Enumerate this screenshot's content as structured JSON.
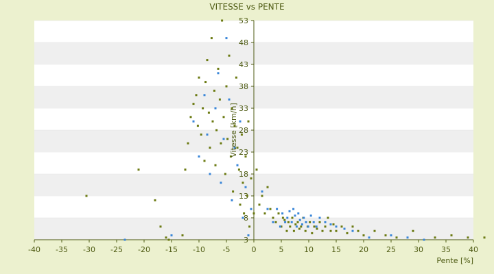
{
  "chart_data": {
    "type": "scatter",
    "title": "VITESSE vs PENTE",
    "xlabel": "Pente [%]",
    "ylabel": "Vitesse [km/h]",
    "xlim": [
      -40,
      40
    ],
    "ylim": [
      3,
      53
    ],
    "x_ticks": [
      -40,
      -35,
      -30,
      -25,
      -20,
      -15,
      -10,
      -5,
      0,
      5,
      10,
      15,
      20,
      25,
      30,
      35,
      40
    ],
    "y_ticks": [
      3,
      8,
      13,
      18,
      23,
      28,
      33,
      38,
      43,
      48,
      53
    ],
    "grid": "horizontal bands",
    "legend": "none",
    "colors": {
      "series_a": "#6b7a12",
      "series_b": "#3a86d8",
      "band": "#efefef",
      "axis": "#4d5a12"
    },
    "series": [
      {
        "marker_color": "#6b7a12",
        "points": [
          [
            -30.5,
            13
          ],
          [
            -21,
            19
          ],
          [
            -18,
            12
          ],
          [
            -17,
            6
          ],
          [
            -16,
            3.5
          ],
          [
            -15.5,
            3
          ],
          [
            -13,
            4
          ],
          [
            -12.5,
            19
          ],
          [
            -12,
            25
          ],
          [
            -11.5,
            31
          ],
          [
            -11,
            34
          ],
          [
            -10.5,
            36
          ],
          [
            -10.2,
            29
          ],
          [
            -10,
            40
          ],
          [
            -9.6,
            27
          ],
          [
            -9.3,
            33
          ],
          [
            -9,
            21
          ],
          [
            -8.8,
            39
          ],
          [
            -8.5,
            44
          ],
          [
            -8.2,
            32
          ],
          [
            -8,
            24
          ],
          [
            -7.7,
            49
          ],
          [
            -7.5,
            30
          ],
          [
            -7.2,
            37
          ],
          [
            -7,
            20
          ],
          [
            -6.8,
            28
          ],
          [
            -6.5,
            42
          ],
          [
            -6.2,
            35
          ],
          [
            -6,
            25
          ],
          [
            -5.8,
            53
          ],
          [
            -5.5,
            31
          ],
          [
            -5.2,
            18
          ],
          [
            -5,
            38
          ],
          [
            -4.8,
            26
          ],
          [
            -4.5,
            45
          ],
          [
            -4.2,
            22
          ],
          [
            -4,
            33
          ],
          [
            -3.8,
            14
          ],
          [
            -3.5,
            29
          ],
          [
            -3.2,
            40
          ],
          [
            -3,
            24
          ],
          [
            -2.7,
            19
          ],
          [
            -2.5,
            11
          ],
          [
            -2.2,
            27
          ],
          [
            -2,
            16
          ],
          [
            -1.8,
            9
          ],
          [
            -1.5,
            22
          ],
          [
            -1.2,
            13
          ],
          [
            -1,
            30
          ],
          [
            -0.8,
            6
          ],
          [
            -0.5,
            17
          ],
          [
            0,
            9
          ],
          [
            0.5,
            19
          ],
          [
            1,
            11
          ],
          [
            1.5,
            13
          ],
          [
            2,
            9
          ],
          [
            2.5,
            15
          ],
          [
            3,
            10
          ],
          [
            3.5,
            8
          ],
          [
            4,
            7
          ],
          [
            4.5,
            9
          ],
          [
            5,
            6
          ],
          [
            5.3,
            8
          ],
          [
            5.6,
            7.5
          ],
          [
            6,
            5
          ],
          [
            6.3,
            7
          ],
          [
            6.6,
            6
          ],
          [
            7,
            8
          ],
          [
            7.3,
            5
          ],
          [
            7.6,
            6.5
          ],
          [
            8,
            7
          ],
          [
            8.3,
            5.5
          ],
          [
            8.6,
            6
          ],
          [
            9,
            8
          ],
          [
            9.4,
            5
          ],
          [
            9.8,
            6
          ],
          [
            10.2,
            7
          ],
          [
            10.6,
            4.5
          ],
          [
            11,
            6
          ],
          [
            11.5,
            5.5
          ],
          [
            12,
            7
          ],
          [
            12.5,
            5
          ],
          [
            13,
            6
          ],
          [
            13.5,
            8
          ],
          [
            14,
            5
          ],
          [
            14.5,
            6.5
          ],
          [
            15,
            5
          ],
          [
            16,
            6
          ],
          [
            17,
            4.5
          ],
          [
            18,
            6
          ],
          [
            19,
            5
          ],
          [
            20,
            4
          ],
          [
            22,
            5
          ],
          [
            24,
            4
          ],
          [
            26,
            3.5
          ],
          [
            29,
            5
          ],
          [
            33,
            3.5
          ],
          [
            36,
            4
          ],
          [
            39,
            3.5
          ],
          [
            42,
            3.5
          ]
        ]
      },
      {
        "marker_color": "#3a86d8",
        "points": [
          [
            -23.5,
            3
          ],
          [
            -15,
            4
          ],
          [
            -11,
            30
          ],
          [
            -10,
            22
          ],
          [
            -9,
            36
          ],
          [
            -8.5,
            27
          ],
          [
            -8,
            18
          ],
          [
            -7,
            33
          ],
          [
            -6.5,
            41
          ],
          [
            -6,
            16
          ],
          [
            -5.5,
            26
          ],
          [
            -5,
            49
          ],
          [
            -4.5,
            35
          ],
          [
            -4,
            12
          ],
          [
            -3.5,
            24
          ],
          [
            -3,
            20
          ],
          [
            -2.5,
            30
          ],
          [
            -2,
            8
          ],
          [
            -1.5,
            15
          ],
          [
            -1,
            4
          ],
          [
            -0.5,
            10
          ],
          [
            1.5,
            14
          ],
          [
            2.5,
            10
          ],
          [
            3.5,
            7
          ],
          [
            4.2,
            10
          ],
          [
            4.8,
            6
          ],
          [
            5.2,
            9
          ],
          [
            5.7,
            7
          ],
          [
            6.1,
            8
          ],
          [
            6.5,
            9.5
          ],
          [
            6.9,
            7
          ],
          [
            7.2,
            10
          ],
          [
            7.5,
            8.5
          ],
          [
            7.8,
            6
          ],
          [
            8.1,
            9
          ],
          [
            8.4,
            7.5
          ],
          [
            8.8,
            6.5
          ],
          [
            9.1,
            8
          ],
          [
            9.5,
            7
          ],
          [
            9.9,
            6
          ],
          [
            10.4,
            8.5
          ],
          [
            10.9,
            7
          ],
          [
            11.4,
            6
          ],
          [
            12,
            8
          ],
          [
            13,
            7
          ],
          [
            14,
            6.5
          ],
          [
            15,
            6
          ],
          [
            16.5,
            5.5
          ],
          [
            18,
            5
          ],
          [
            21,
            3.5
          ],
          [
            25,
            4
          ],
          [
            28,
            3.5
          ],
          [
            31,
            3
          ]
        ]
      }
    ]
  }
}
